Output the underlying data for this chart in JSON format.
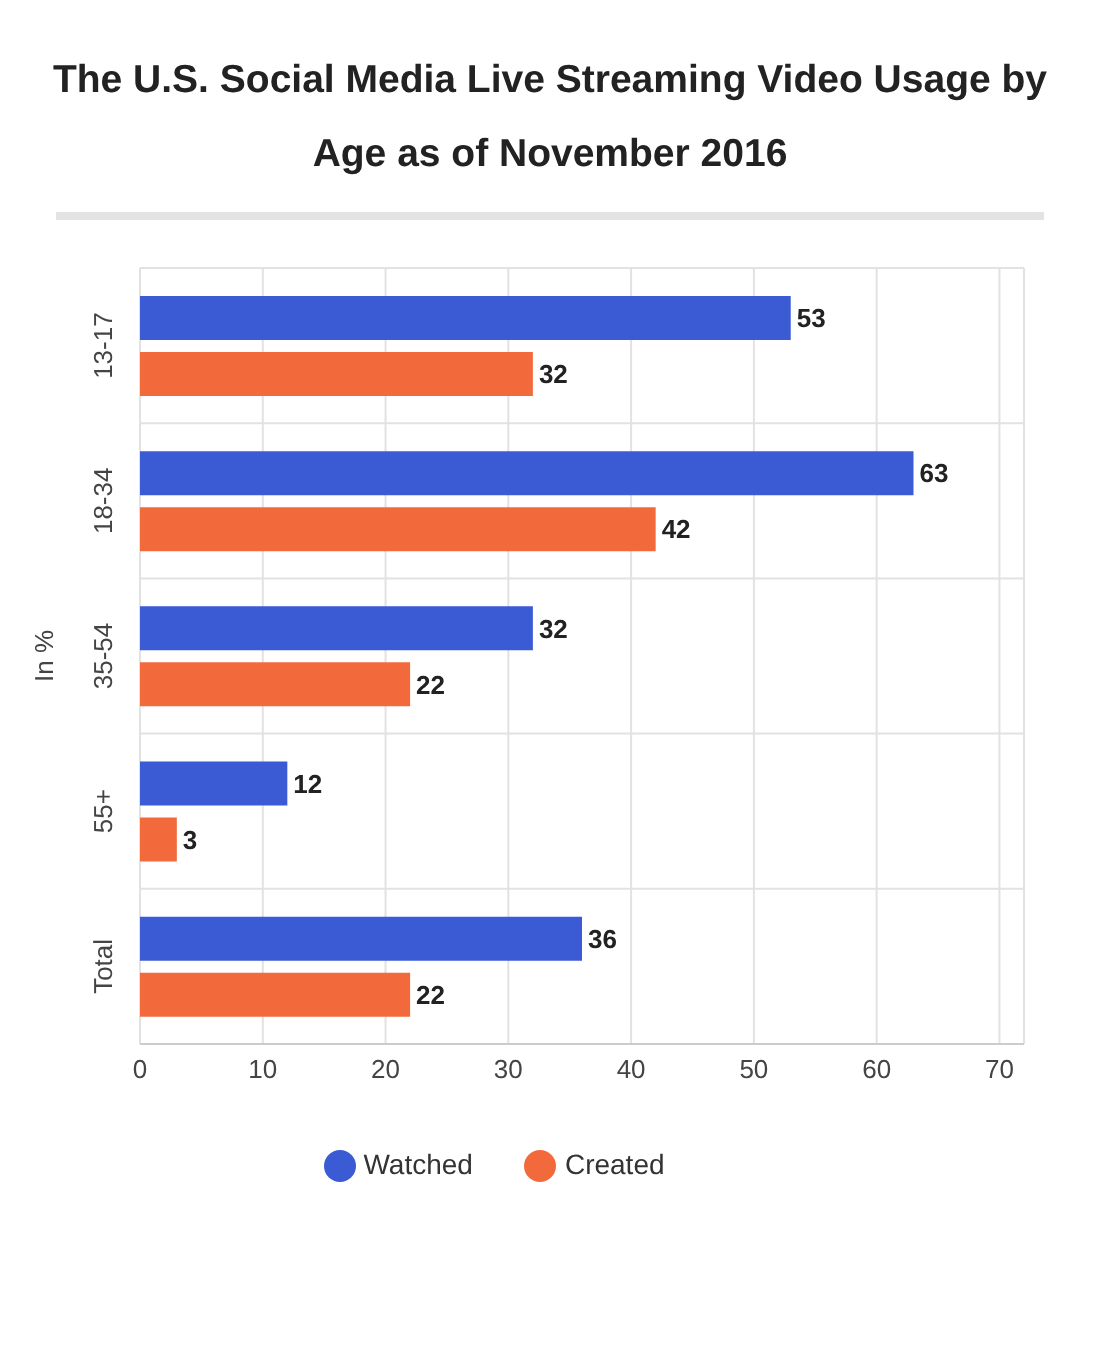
{
  "chart_data": {
    "type": "bar",
    "orientation": "horizontal",
    "title": "The U.S. Social Media Live Streaming Video Usage by Age as of November 2016",
    "ylabel": "In %",
    "categories": [
      "13-17",
      "18-34",
      "35-54",
      "55+",
      "Total"
    ],
    "series": [
      {
        "name": "Watched",
        "color": "#3b5bd5",
        "values": [
          53,
          63,
          32,
          12,
          36
        ]
      },
      {
        "name": "Created",
        "color": "#f26a3c",
        "values": [
          32,
          42,
          22,
          3,
          22
        ]
      }
    ],
    "xlim": [
      0,
      72
    ],
    "xticks": [
      0,
      10,
      20,
      30,
      40,
      50,
      60,
      70
    ],
    "grid": true,
    "legend": "bottom",
    "data_labels": true
  }
}
